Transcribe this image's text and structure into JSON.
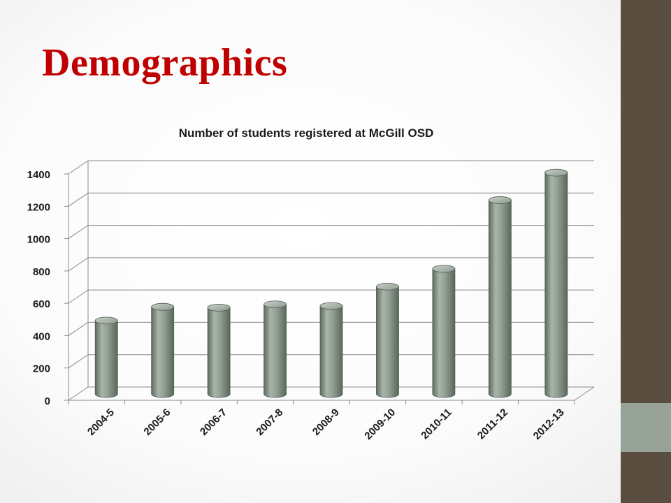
{
  "slide": {
    "title": "Demographics",
    "colors": {
      "title": "#c00000",
      "side_bar": "#5a4e40",
      "side_accent": "#97a298",
      "bar": "#97a298"
    }
  },
  "chart_data": {
    "type": "bar",
    "title": "Number of students registered at McGill OSD",
    "xlabel": "",
    "ylabel": "",
    "categories": [
      "2004-5",
      "2005-6",
      "2006-7",
      "2007-8",
      "2008-9",
      "2009-10",
      "2010-11",
      "2011-12",
      "2012-13"
    ],
    "values": [
      450,
      535,
      530,
      550,
      540,
      660,
      770,
      1195,
      1365
    ],
    "ylim": [
      0,
      1400
    ],
    "yticks": [
      0,
      200,
      400,
      600,
      800,
      1000,
      1200,
      1400
    ],
    "grid": true,
    "legend": "none"
  }
}
